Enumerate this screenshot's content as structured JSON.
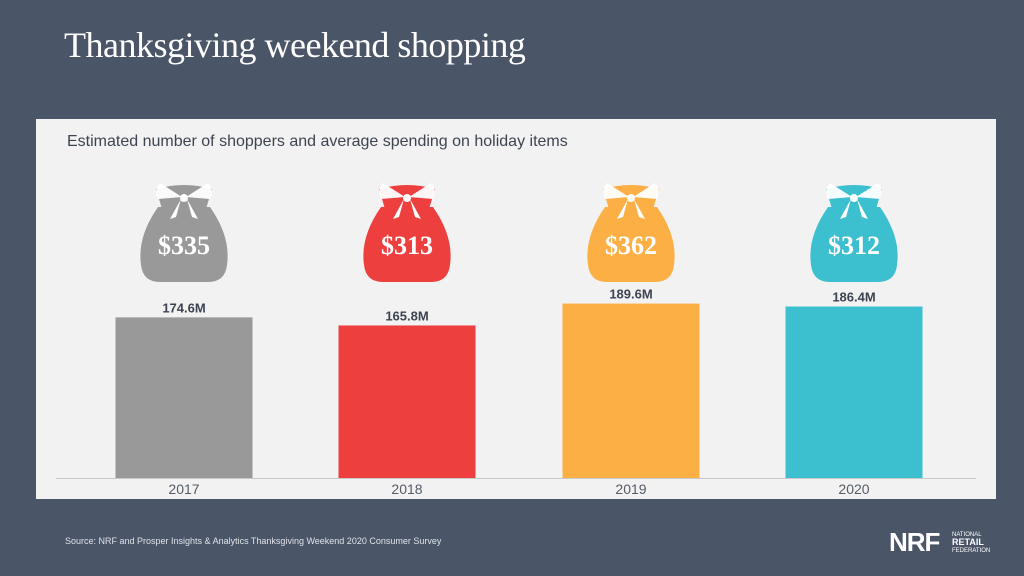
{
  "header": {
    "title": "Thanksgiving weekend shopping"
  },
  "colors": {
    "background": "#4a5568",
    "panel": "#f2f2f2",
    "baseline": "#c8c8c8"
  },
  "chart_data": {
    "type": "bar",
    "title": "Estimated number of shoppers and average spending on holiday items",
    "categories": [
      "2017",
      "2018",
      "2019",
      "2020"
    ],
    "series": [
      {
        "values": [
          174.6,
          165.8,
          189.6,
          186.4
        ],
        "labels": [
          "174.6M",
          "165.8M",
          "189.6M",
          "186.4M"
        ]
      }
    ],
    "average_spending": {
      "values": [
        335,
        313,
        362,
        312
      ],
      "labels": [
        "$335",
        "$313",
        "$362",
        "$312"
      ],
      "icon": "gift-bag-icon"
    },
    "bar_colors": [
      "#999999",
      "#ee3f3f",
      "#fbaf45",
      "#3cc0cf"
    ],
    "xlabel": "",
    "ylabel": "",
    "grid": false,
    "legend": false
  },
  "footer": {
    "source": "Source: NRF and Prosper Insights & Analytics Thanksgiving Weekend 2020 Consumer Survey",
    "logo_text": "NRF",
    "logo_sub": [
      "NATIONAL",
      "RETAIL",
      "FEDERATION"
    ]
  }
}
